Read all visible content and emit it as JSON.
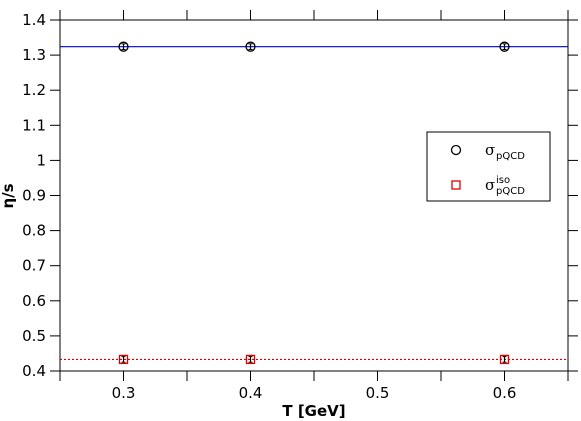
{
  "chart_data": {
    "type": "scatter",
    "title": "",
    "xlabel": "T [GeV]",
    "ylabel": "η/s",
    "xlim": [
      0.25,
      0.65
    ],
    "ylim": [
      0.4,
      1.4
    ],
    "x_ticks": [
      {
        "value": 0.3,
        "label": "0.3"
      },
      {
        "value": 0.4,
        "label": "0.4"
      },
      {
        "value": 0.5,
        "label": "0.5"
      },
      {
        "value": 0.6,
        "label": "0.6"
      }
    ],
    "x_minor_ticks": [
      0.25,
      0.35,
      0.45,
      0.55,
      0.65
    ],
    "y_ticks": [
      {
        "value": 0.4,
        "label": "0.4"
      },
      {
        "value": 0.5,
        "label": "0.5"
      },
      {
        "value": 0.6,
        "label": "0.6"
      },
      {
        "value": 0.7,
        "label": "0.7"
      },
      {
        "value": 0.8,
        "label": "0.8"
      },
      {
        "value": 0.9,
        "label": "0.9"
      },
      {
        "value": 1.0,
        "label": "1"
      },
      {
        "value": 1.1,
        "label": "1.1"
      },
      {
        "value": 1.2,
        "label": "1.2"
      },
      {
        "value": 1.3,
        "label": "1.3"
      },
      {
        "value": 1.4,
        "label": "1.4"
      }
    ],
    "grid": false,
    "legend_position": "right",
    "series": [
      {
        "key": "sigma_pqcd",
        "marker": "circle",
        "color": "#000000",
        "legend_main": "σ",
        "legend_sup": "",
        "legend_sub": "pQCD",
        "x": [
          0.3,
          0.4,
          0.6
        ],
        "y": [
          1.324,
          1.324,
          1.324
        ],
        "yerr": [
          0.008,
          0.008,
          0.008
        ],
        "reference_line": {
          "y": 1.324,
          "color": "#0000cc",
          "style": "solid"
        }
      },
      {
        "key": "sigma_iso_pqcd",
        "marker": "square",
        "color": "#dd0000",
        "legend_main": "σ",
        "legend_sup": "iso",
        "legend_sub": "pQCD",
        "x": [
          0.3,
          0.4,
          0.6
        ],
        "y": [
          0.433,
          0.433,
          0.433
        ],
        "yerr": [
          0.008,
          0.008,
          0.008
        ],
        "reference_line": {
          "y": 0.433,
          "color": "#dd0000",
          "style": "dotted"
        }
      }
    ]
  }
}
